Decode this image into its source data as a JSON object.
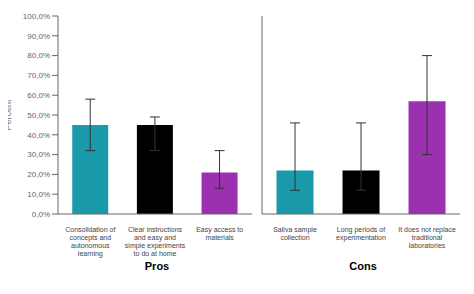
{
  "chart_data": [
    {
      "type": "bar",
      "xlabel": "Pros",
      "ylabel": "Percent",
      "categories": [
        "Consolidation of\nconcepts and\nautonomous\nlearning",
        "Clear instructions\nand easy and\nsimple experiments\nto do at home",
        "Easy access to\nmaterials"
      ],
      "values": [
        45.0,
        45.0,
        21.0
      ],
      "yerr_upper": [
        13.0,
        4.0,
        11.0
      ],
      "yerr_lower": [
        13.0,
        13.0,
        8.0
      ],
      "colors": [
        "#1a9aaa",
        "#000000",
        "#9b30b0"
      ],
      "ylim": [
        0,
        100
      ],
      "yticks": [
        {
          "value": 0,
          "label": "0,0%"
        },
        {
          "value": 10,
          "label": "10,0%"
        },
        {
          "value": 20,
          "label": "20,0%"
        },
        {
          "value": 30,
          "label": "30,0%"
        },
        {
          "value": 40,
          "label": "40,0%"
        },
        {
          "value": 50,
          "label": "50,0%"
        },
        {
          "value": 60,
          "label": "60,0%"
        },
        {
          "value": 70,
          "label": "70,0%"
        },
        {
          "value": 80,
          "label": "80,0%"
        },
        {
          "value": 90,
          "label": "90,0%"
        },
        {
          "value": 100,
          "label": "100,0%"
        }
      ],
      "grid": false
    },
    {
      "type": "bar",
      "xlabel": "Cons",
      "categories": [
        "Saliva sample\ncollection",
        "Long periods of\nexperimentation",
        "It does not replace\ntraditional\nlaboratories"
      ],
      "values": [
        22.0,
        22.0,
        57.0
      ],
      "yerr_upper": [
        24.0,
        24.0,
        23.0
      ],
      "yerr_lower": [
        10.0,
        10.0,
        27.0
      ],
      "colors": [
        "#1a9aaa",
        "#000000",
        "#9b30b0"
      ],
      "ylim": [
        0,
        100
      ],
      "yticks": [
        0,
        10,
        20,
        30,
        40,
        50,
        60,
        70,
        80,
        90,
        100
      ],
      "tick_labels": "x",
      "grid": false
    }
  ]
}
